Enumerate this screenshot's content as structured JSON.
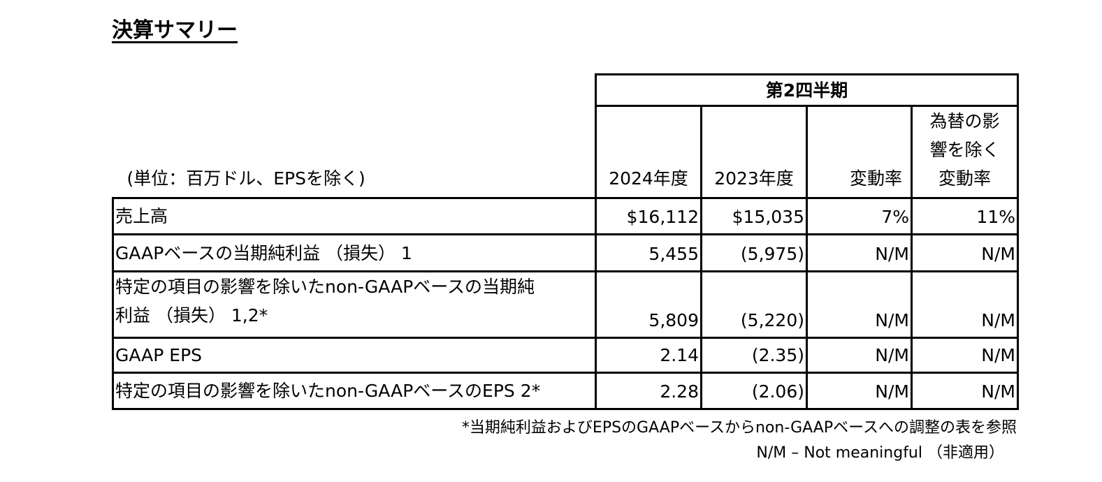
{
  "title": "決算サマリー",
  "table": {
    "unit_note": "(単位：百万ドル、EPSを除く)",
    "period_header": "第2四半期",
    "columns": [
      "2024年度",
      "2023年度",
      "変動率",
      "為替の影\n響を除く\n変動率"
    ],
    "rows": [
      [
        "売上高",
        "$16,112",
        "$15,035",
        "7%",
        "11%"
      ],
      [
        "GAAPベースの当期純利益 （損失） 1",
        "5,455",
        "(5,975)",
        "N/M",
        "N/M"
      ],
      [
        "特定の項目の影響を除いたnon-GAAPベースの当期純\n利益 （損失） 1,2*",
        "5,809",
        "(5,220)",
        "N/M",
        "N/M"
      ],
      [
        "GAAP EPS",
        "2.14",
        "(2.35)",
        "N/M",
        "N/M"
      ],
      [
        "特定の項目の影響を除いたnon-GAAPベースのEPS 2*",
        "2.28",
        "(2.06)",
        "N/M",
        "N/M"
      ]
    ]
  },
  "footnotes": [
    "*当期純利益およびEPSのGAAPベースからnon-GAAPベースへの調整の表を参照",
    "N/M – Not meaningful （非適用）"
  ]
}
